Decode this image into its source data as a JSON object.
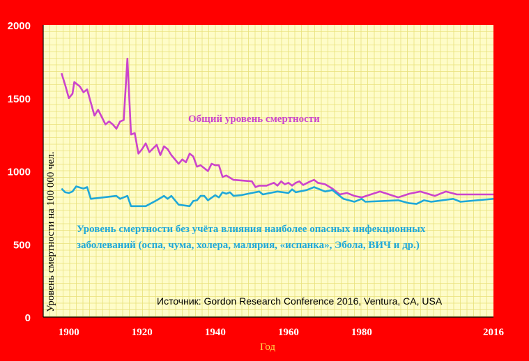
{
  "chart_data": {
    "type": "line",
    "xlabel": "Год",
    "ylabel": "Уровень смертности на 100 000 чел.",
    "xlim": [
      1893,
      2016
    ],
    "ylim": [
      0,
      2000
    ],
    "x_ticks": [
      "1900",
      "1920",
      "1940",
      "1960",
      "1980",
      "2016"
    ],
    "x_tick_values": [
      1900,
      1920,
      1940,
      1960,
      1980,
      2016
    ],
    "y_ticks": [
      "0",
      "500",
      "1000",
      "1500",
      "2000"
    ],
    "y_tick_values": [
      0,
      500,
      1000,
      1500,
      2000
    ],
    "grid": true,
    "annotations": {
      "total_label": "Общий уровень смертности",
      "noinf_label_line1": "Уровень смертности без учёта влияния наиболее опасных инфекционных",
      "noinf_label_line2": "заболеваний (оспа, чума, холера, малярия, «испанка», Эбола, ВИЧ и др.)",
      "source": "Источник: Gordon Research Conference 2016, Ventura, CA, USA"
    },
    "series": [
      {
        "key": "total",
        "color": "#cc44cc",
        "points": [
          [
            1898,
            1670
          ],
          [
            1899,
            1590
          ],
          [
            1900,
            1500
          ],
          [
            1901,
            1530
          ],
          [
            1901.5,
            1610
          ],
          [
            1903,
            1580
          ],
          [
            1904,
            1540
          ],
          [
            1905,
            1560
          ],
          [
            1907,
            1380
          ],
          [
            1908,
            1420
          ],
          [
            1910,
            1320
          ],
          [
            1911,
            1340
          ],
          [
            1912,
            1320
          ],
          [
            1913,
            1290
          ],
          [
            1914,
            1340
          ],
          [
            1915,
            1350
          ],
          [
            1916,
            1770
          ],
          [
            1917,
            1250
          ],
          [
            1918,
            1260
          ],
          [
            1919,
            1120
          ],
          [
            1920,
            1150
          ],
          [
            1921,
            1190
          ],
          [
            1922,
            1130
          ],
          [
            1924,
            1180
          ],
          [
            1925,
            1110
          ],
          [
            1926,
            1170
          ],
          [
            1927,
            1150
          ],
          [
            1928,
            1110
          ],
          [
            1930,
            1050
          ],
          [
            1931,
            1080
          ],
          [
            1932,
            1060
          ],
          [
            1933,
            1120
          ],
          [
            1934,
            1100
          ],
          [
            1935,
            1030
          ],
          [
            1936,
            1040
          ],
          [
            1938,
            1000
          ],
          [
            1939,
            1050
          ],
          [
            1940,
            1040
          ],
          [
            1941,
            1040
          ],
          [
            1942,
            960
          ],
          [
            1943,
            970
          ],
          [
            1945,
            940
          ],
          [
            1950,
            930
          ],
          [
            1951,
            890
          ],
          [
            1952,
            900
          ],
          [
            1954,
            900
          ],
          [
            1956,
            920
          ],
          [
            1957,
            900
          ],
          [
            1958,
            930
          ],
          [
            1959,
            910
          ],
          [
            1960,
            920
          ],
          [
            1961,
            900
          ],
          [
            1962,
            920
          ],
          [
            1963,
            930
          ],
          [
            1964,
            905
          ],
          [
            1966,
            930
          ],
          [
            1967,
            940
          ],
          [
            1968,
            920
          ],
          [
            1970,
            910
          ],
          [
            1972,
            880
          ],
          [
            1974,
            840
          ],
          [
            1976,
            850
          ],
          [
            1978,
            830
          ],
          [
            1980,
            820
          ],
          [
            1985,
            860
          ],
          [
            1990,
            820
          ],
          [
            1993,
            845
          ],
          [
            1996,
            860
          ],
          [
            2000,
            830
          ],
          [
            2003,
            860
          ],
          [
            2006,
            840
          ],
          [
            2016,
            840
          ]
        ]
      },
      {
        "key": "noinf",
        "color": "#1fa8d8",
        "points": [
          [
            1898,
            880
          ],
          [
            1899,
            855
          ],
          [
            1900,
            850
          ],
          [
            1901,
            860
          ],
          [
            1902,
            895
          ],
          [
            1904,
            880
          ],
          [
            1905,
            890
          ],
          [
            1906,
            810
          ],
          [
            1913,
            830
          ],
          [
            1914,
            810
          ],
          [
            1916,
            830
          ],
          [
            1917,
            760
          ],
          [
            1921,
            760
          ],
          [
            1924,
            800
          ],
          [
            1926,
            830
          ],
          [
            1927,
            810
          ],
          [
            1928,
            830
          ],
          [
            1930,
            770
          ],
          [
            1933,
            760
          ],
          [
            1934,
            795
          ],
          [
            1935,
            800
          ],
          [
            1936,
            830
          ],
          [
            1937,
            830
          ],
          [
            1938,
            800
          ],
          [
            1940,
            835
          ],
          [
            1941,
            820
          ],
          [
            1942,
            855
          ],
          [
            1943,
            845
          ],
          [
            1944,
            855
          ],
          [
            1945,
            830
          ],
          [
            1947,
            835
          ],
          [
            1950,
            850
          ],
          [
            1952,
            860
          ],
          [
            1953,
            840
          ],
          [
            1955,
            850
          ],
          [
            1957,
            860
          ],
          [
            1960,
            850
          ],
          [
            1961,
            875
          ],
          [
            1962,
            855
          ],
          [
            1965,
            870
          ],
          [
            1967,
            890
          ],
          [
            1968,
            880
          ],
          [
            1970,
            860
          ],
          [
            1972,
            870
          ],
          [
            1975,
            810
          ],
          [
            1978,
            790
          ],
          [
            1979,
            800
          ],
          [
            1980,
            810
          ],
          [
            1981,
            790
          ],
          [
            1990,
            800
          ],
          [
            1993,
            780
          ],
          [
            1995,
            775
          ],
          [
            1997,
            800
          ],
          [
            1999,
            790
          ],
          [
            2002,
            800
          ],
          [
            2005,
            810
          ],
          [
            2007,
            790
          ],
          [
            2016,
            810
          ]
        ]
      }
    ]
  }
}
